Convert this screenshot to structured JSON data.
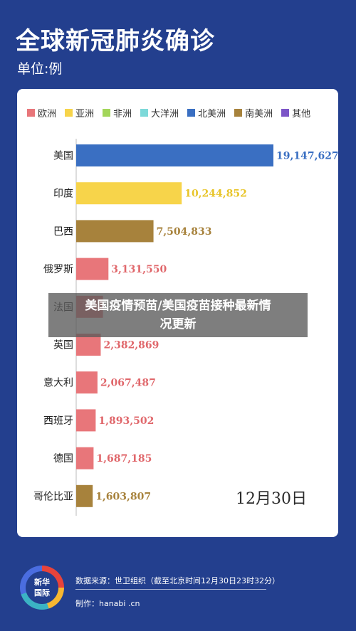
{
  "header": {
    "title": "全球新冠肺炎确诊",
    "unit": "单位:例"
  },
  "legend": [
    {
      "label": "欧洲",
      "color": "#e8767a"
    },
    {
      "label": "亚洲",
      "color": "#f7d44a"
    },
    {
      "label": "非洲",
      "color": "#a3d65a"
    },
    {
      "label": "大洋洲",
      "color": "#7dd9d9"
    },
    {
      "label": "北美洲",
      "color": "#3a6fc2"
    },
    {
      "label": "南美洲",
      "color": "#a7823c"
    },
    {
      "label": "其他",
      "color": "#7c55c7"
    }
  ],
  "chart_data": {
    "type": "bar",
    "orientation": "horizontal",
    "categories": [
      "美国",
      "印度",
      "巴西",
      "俄罗斯",
      "法国",
      "英国",
      "意大利",
      "西班牙",
      "德国",
      "哥伦比亚"
    ],
    "values": [
      19147627,
      10244852,
      7504833,
      3131550,
      2600000,
      2382869,
      2067487,
      1893502,
      1687185,
      1603807
    ],
    "value_labels": [
      "19,147,627",
      "10,244,852",
      "7,504,833",
      "3,131,550",
      "",
      "2,382,869",
      "2,067,487",
      "1,893,502",
      "1,687,185",
      "1,603,807"
    ],
    "colors": [
      "#3a6fc2",
      "#f7d44a",
      "#a7823c",
      "#e8767a",
      "#e8767a",
      "#e8767a",
      "#e8767a",
      "#e8767a",
      "#e8767a",
      "#a7823c"
    ],
    "label_colors": [
      "#3a6fc2",
      "#e8c52a",
      "#a7823c",
      "#e0676b",
      "#e0676b",
      "#e0676b",
      "#e0676b",
      "#e0676b",
      "#e0676b",
      "#a7823c"
    ],
    "xlim": [
      0,
      19147627
    ]
  },
  "date": "12月30日",
  "overlay": {
    "line1": "美国疫情预苗/美国疫苗接种最新情",
    "line2": "况更新"
  },
  "footer": {
    "logo_text_1": "新华",
    "logo_text_2": "国际",
    "source": "数据来源：世卫组织（截至北京时间12月30日23时32分）",
    "credit": "制作：hanabi  .cn"
  }
}
